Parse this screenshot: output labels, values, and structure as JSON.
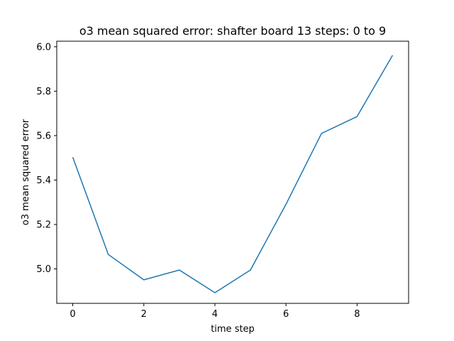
{
  "chart_data": {
    "type": "line",
    "title": "o3 mean squared error: shafter board 13 steps: 0 to 9",
    "xlabel": "time step",
    "ylabel": "o3 mean squared error",
    "xlim": [
      -0.45,
      9.45
    ],
    "ylim": [
      4.845,
      6.025
    ],
    "xticks": [
      0,
      2,
      4,
      6,
      8
    ],
    "xtick_labels": [
      "0",
      "2",
      "4",
      "6",
      "8"
    ],
    "yticks": [
      5.0,
      5.2,
      5.4,
      5.6,
      5.8,
      6.0
    ],
    "ytick_labels": [
      "5.0",
      "5.2",
      "5.4",
      "5.6",
      "5.8",
      "6.0"
    ],
    "grid": false,
    "series": [
      {
        "x": [
          0,
          1,
          2,
          3,
          4,
          5,
          6,
          7,
          8,
          9
        ],
        "y": [
          5.503,
          5.065,
          4.951,
          4.995,
          4.893,
          4.995,
          5.291,
          5.61,
          5.686,
          5.962
        ],
        "color": "#1f77b4"
      }
    ]
  }
}
